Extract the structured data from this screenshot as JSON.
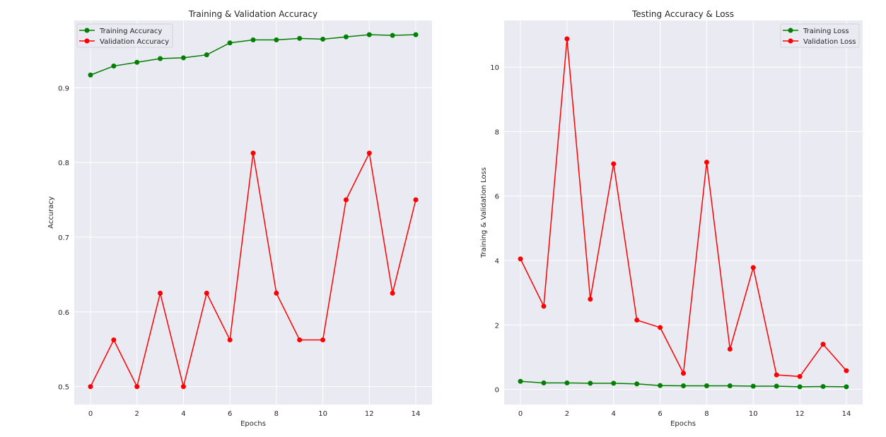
{
  "chart_data": [
    {
      "type": "line",
      "title": "Training & Validation Accuracy",
      "xlabel": "Epochs",
      "ylabel": "Accuracy",
      "x": [
        0,
        1,
        2,
        3,
        4,
        5,
        6,
        7,
        8,
        9,
        10,
        11,
        12,
        13,
        14
      ],
      "xlim": [
        -0.7,
        14.7
      ],
      "ylim": [
        0.476,
        0.99
      ],
      "xticks": [
        "0",
        "2",
        "4",
        "6",
        "8",
        "10",
        "12",
        "14"
      ],
      "yticks": [
        "0.5",
        "0.6",
        "0.7",
        "0.8",
        "0.9"
      ],
      "grid": true,
      "legend_position": "top-left",
      "series": [
        {
          "name": "Training Accuracy",
          "color": "#008000",
          "values": [
            0.917,
            0.929,
            0.934,
            0.939,
            0.94,
            0.944,
            0.96,
            0.964,
            0.964,
            0.966,
            0.965,
            0.968,
            0.971,
            0.97,
            0.971
          ]
        },
        {
          "name": "Validation Accuracy",
          "color": "#ff0000",
          "values": [
            0.5,
            0.5625,
            0.5,
            0.625,
            0.5,
            0.625,
            0.5625,
            0.8125,
            0.625,
            0.5625,
            0.5625,
            0.75,
            0.8125,
            0.625,
            0.75
          ]
        }
      ]
    },
    {
      "type": "line",
      "title": "Testing Accuracy & Loss",
      "xlabel": "Epochs",
      "ylabel": "Training & Validation Loss",
      "x": [
        0,
        1,
        2,
        3,
        4,
        5,
        6,
        7,
        8,
        9,
        10,
        11,
        12,
        13,
        14
      ],
      "xlim": [
        -0.7,
        14.7
      ],
      "ylim": [
        -0.47,
        11.45
      ],
      "xticks": [
        "0",
        "2",
        "4",
        "6",
        "8",
        "10",
        "12",
        "14"
      ],
      "yticks": [
        "0",
        "2",
        "4",
        "6",
        "8",
        "10"
      ],
      "grid": true,
      "legend_position": "top-right",
      "series": [
        {
          "name": "Training Loss",
          "color": "#008000",
          "values": [
            0.25,
            0.2,
            0.2,
            0.19,
            0.19,
            0.17,
            0.12,
            0.11,
            0.11,
            0.11,
            0.1,
            0.1,
            0.08,
            0.09,
            0.08
          ]
        },
        {
          "name": "Validation Loss",
          "color": "#ff0000",
          "values": [
            4.05,
            2.58,
            10.88,
            2.8,
            7.0,
            2.15,
            1.92,
            0.5,
            7.05,
            1.25,
            3.78,
            0.45,
            0.4,
            1.4,
            0.58
          ]
        }
      ]
    }
  ]
}
